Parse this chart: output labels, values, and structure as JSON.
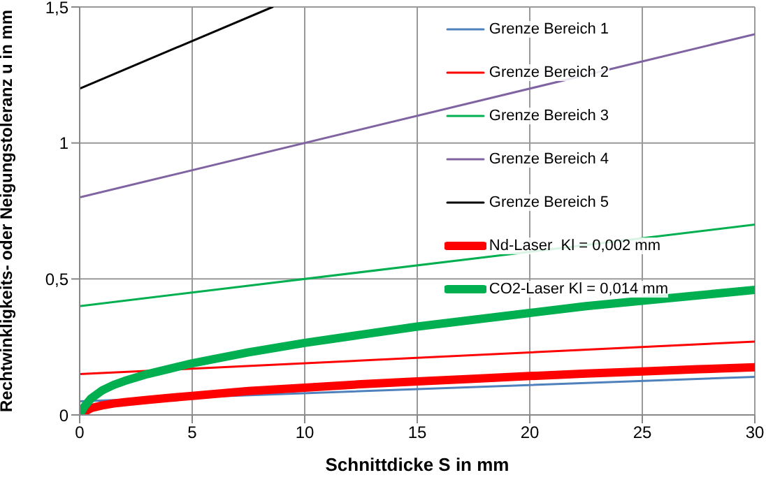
{
  "chart_data": {
    "type": "line",
    "xlabel": "Schnittdicke S in mm",
    "ylabel": "Rechtwinkligkeits- oder Neigungstoleranz u in mm",
    "xlim": [
      0,
      30
    ],
    "xticks": [
      0,
      5,
      10,
      15,
      20,
      25,
      30
    ],
    "ylim": [
      0,
      1.5
    ],
    "yticks": [
      0,
      {
        "value": 0.5,
        "label": "0,5"
      },
      1,
      {
        "value": 1.5,
        "label": "1,5"
      }
    ],
    "grid": true,
    "legend": "right",
    "series": [
      {
        "name": "Grenze Bereich 1",
        "color": "#4f81bd",
        "x": [
          0,
          30
        ],
        "values": [
          0.05,
          0.14
        ]
      },
      {
        "name": "Grenze Bereich 2",
        "color": "#ff0000",
        "x": [
          0,
          30
        ],
        "values": [
          0.15,
          0.27
        ]
      },
      {
        "name": "Grenze Bereich 3",
        "color": "#00b050",
        "x": [
          0,
          30
        ],
        "values": [
          0.4,
          0.7
        ]
      },
      {
        "name": "Grenze Bereich 4",
        "color": "#8064a2",
        "x": [
          0,
          30
        ],
        "values": [
          0.8,
          1.4
        ]
      },
      {
        "name": "Grenze Bereich 5",
        "color": "#000000",
        "x": [
          0,
          8.57
        ],
        "values": [
          1.2,
          1.5
        ]
      },
      {
        "name": "Nd-Laser  Kl = 0,002 mm",
        "color": "#ff0000",
        "x": [
          0,
          0.2,
          0.5,
          1,
          1.5,
          2,
          3,
          4,
          5,
          7.5,
          10,
          12.5,
          15,
          17.5,
          20,
          22.5,
          25,
          27.5,
          30
        ],
        "values": [
          0,
          0.01,
          0.025,
          0.035,
          0.042,
          0.047,
          0.055,
          0.063,
          0.07,
          0.088,
          0.1,
          0.113,
          0.123,
          0.133,
          0.143,
          0.152,
          0.16,
          0.168,
          0.175
        ]
      },
      {
        "name": "CO2-Laser Kl = 0,014 mm",
        "color": "#00b050",
        "x": [
          0,
          0.2,
          0.5,
          1,
          1.5,
          2,
          3,
          4,
          5,
          7.5,
          10,
          12.5,
          15,
          17.5,
          20,
          22.5,
          25,
          27.5,
          30
        ],
        "values": [
          0,
          0.03,
          0.06,
          0.09,
          0.11,
          0.125,
          0.15,
          0.17,
          0.19,
          0.23,
          0.265,
          0.295,
          0.325,
          0.35,
          0.375,
          0.4,
          0.42,
          0.44,
          0.46
        ]
      }
    ]
  }
}
